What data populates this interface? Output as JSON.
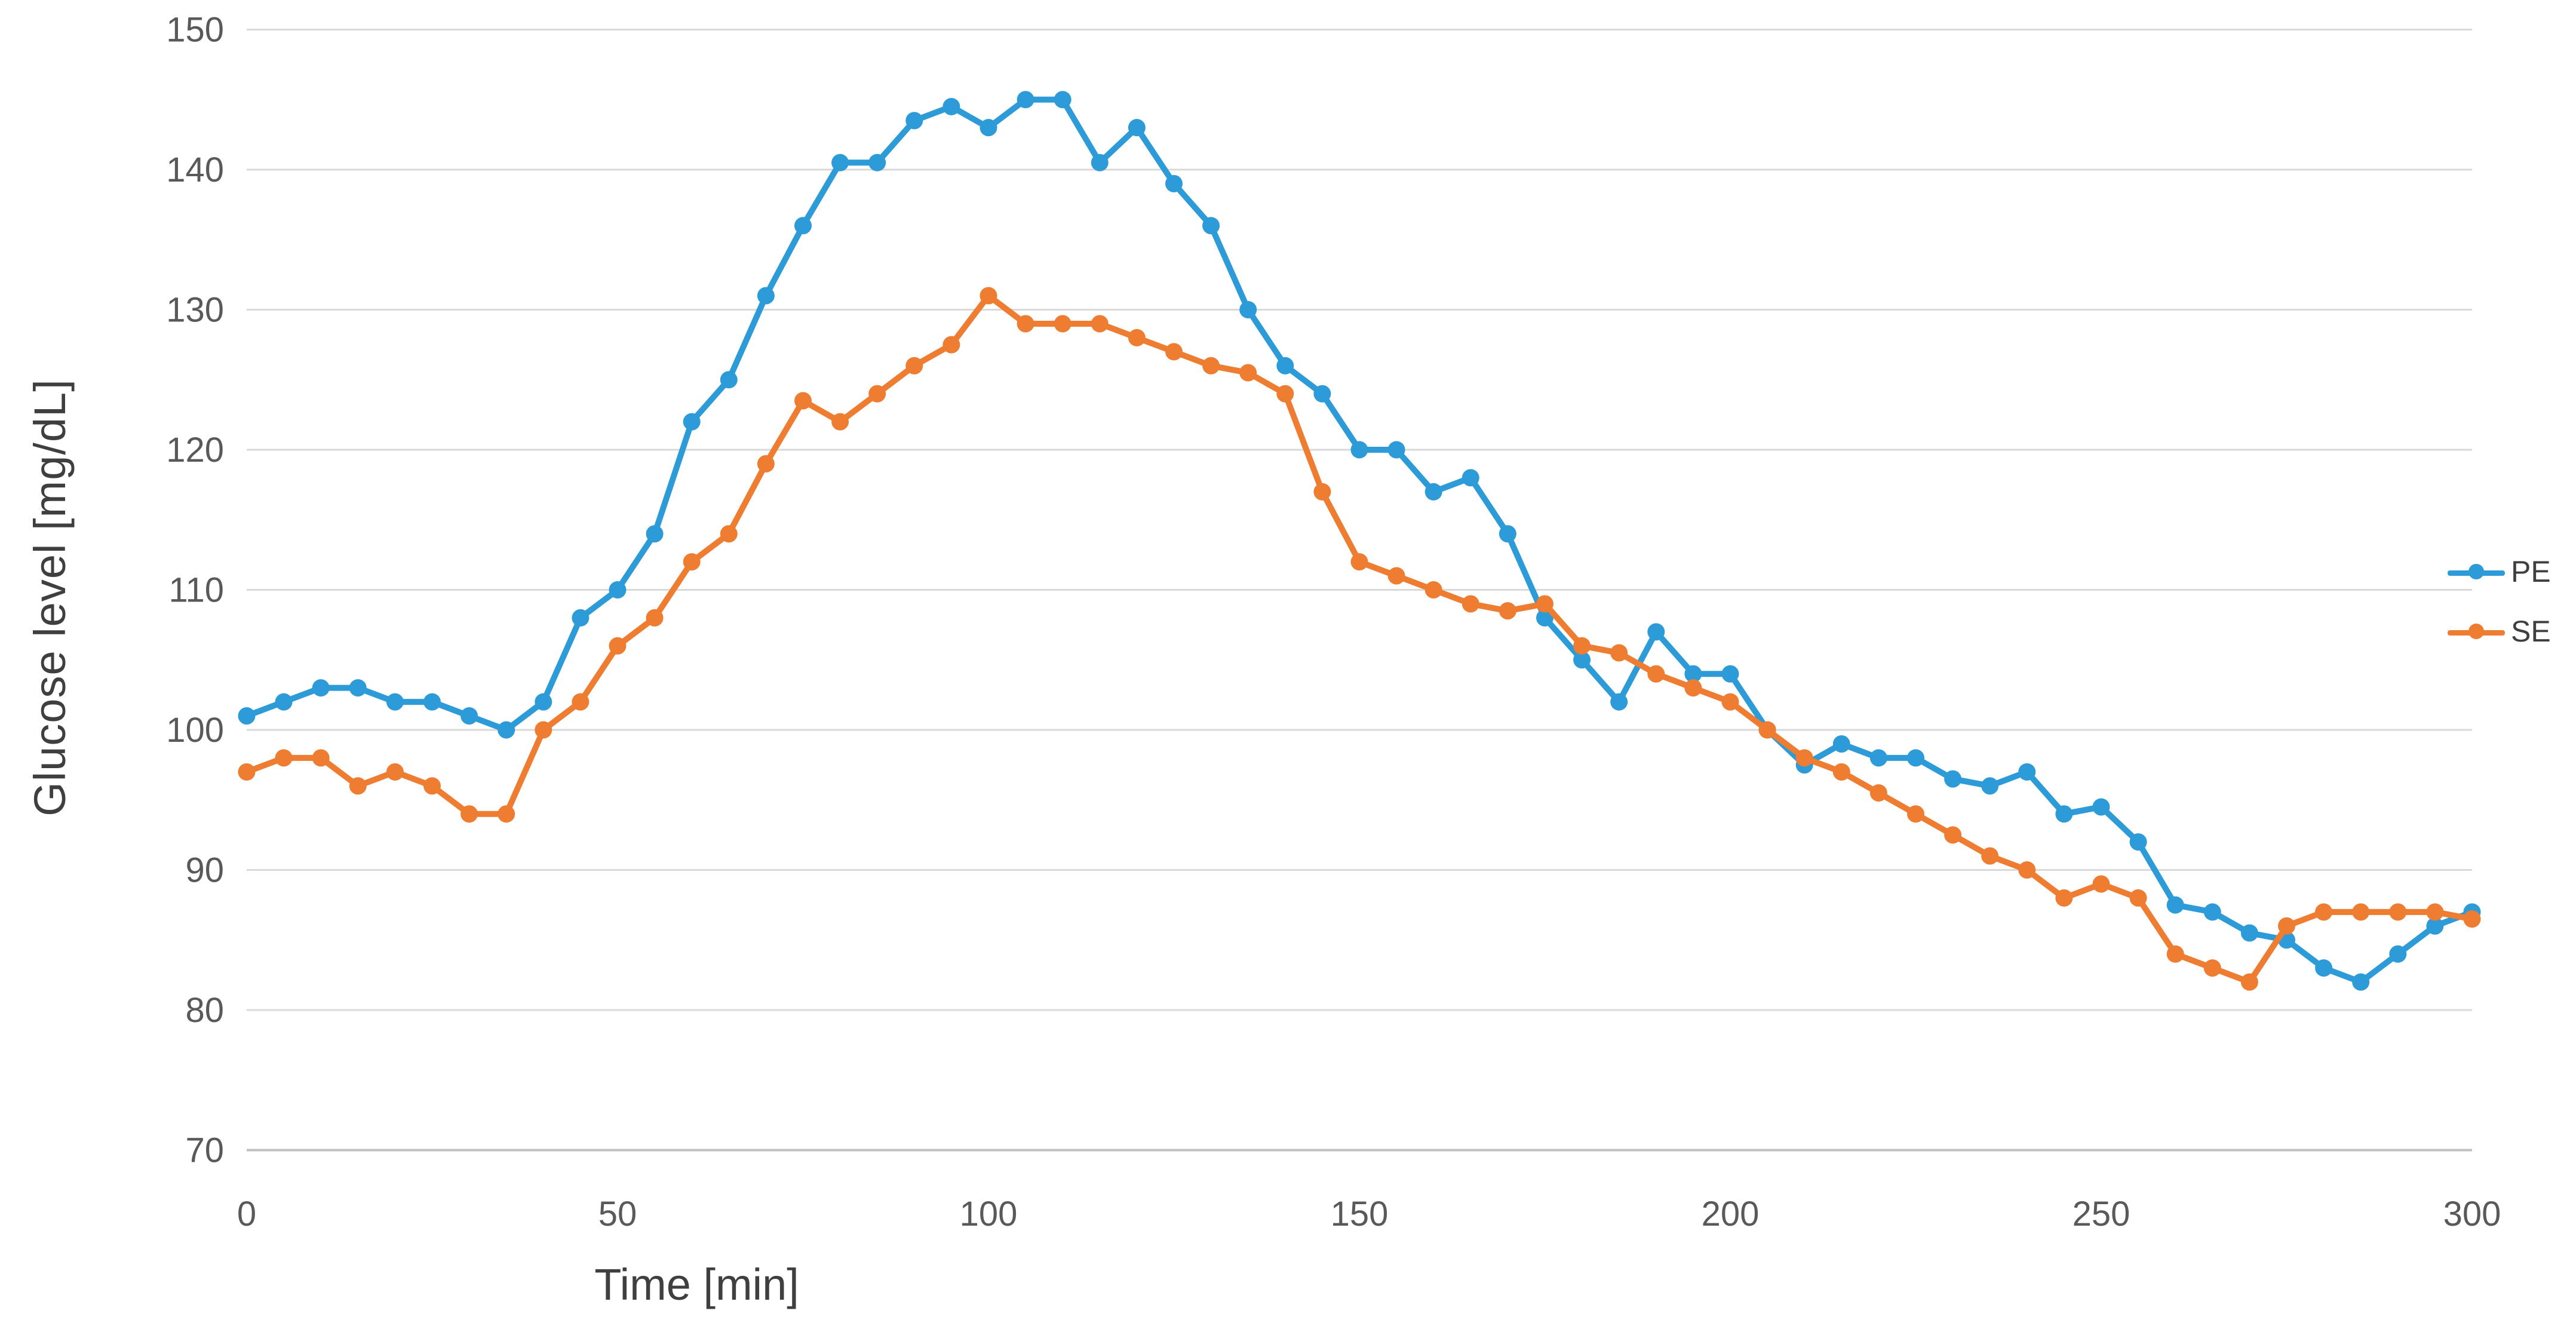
{
  "chart_data": {
    "type": "line",
    "title": "",
    "xlabel": "Time [min]",
    "ylabel": "Glucose level [mg/dL]",
    "x_start": 0,
    "x_step": 5,
    "xlim": [
      0,
      300
    ],
    "ylim": [
      70,
      150
    ],
    "x_ticks": [
      0,
      50,
      100,
      150,
      200,
      250,
      300
    ],
    "y_ticks": [
      150,
      140,
      130,
      120,
      110,
      100,
      90,
      80,
      70
    ],
    "grid": true,
    "legend_position": "right",
    "series": [
      {
        "name": "PE",
        "color": "#2d9bd7",
        "values": [
          101,
          102,
          103,
          103,
          102,
          102,
          101,
          100,
          102,
          108,
          110,
          114,
          122,
          125,
          131,
          136,
          140.5,
          140.5,
          143.5,
          144.5,
          143,
          145,
          145,
          140.5,
          143,
          139,
          136,
          130,
          126,
          124,
          120,
          120,
          117,
          118,
          114,
          108,
          105,
          102,
          107,
          104,
          104,
          100,
          97.5,
          99,
          98,
          98,
          96.5,
          96,
          97,
          94,
          94.5,
          92,
          87.5,
          87,
          85.5,
          85,
          83,
          82,
          84,
          86,
          87
        ]
      },
      {
        "name": "SE",
        "color": "#ee7d31",
        "values": [
          97,
          98,
          98,
          96,
          97,
          96,
          94,
          94,
          100,
          102,
          106,
          108,
          112,
          114,
          119,
          123.5,
          122,
          124,
          126,
          127.5,
          131,
          129,
          129,
          129,
          128,
          127,
          126,
          125.5,
          124,
          117,
          112,
          111,
          110,
          109,
          108.5,
          109,
          106,
          105.5,
          104,
          103,
          102,
          100,
          98,
          97,
          95.5,
          94,
          92.5,
          91,
          90,
          88,
          89,
          88,
          84,
          83,
          82,
          86,
          87,
          87,
          87,
          87,
          86.5
        ]
      }
    ],
    "colors": {
      "gridline": "#d9d9d9",
      "axis_line": "#bfbfbf",
      "tick_label": "#595959",
      "axis_title": "#3f3f3f"
    }
  },
  "legend": {
    "items": [
      {
        "label": "PE"
      },
      {
        "label": "SE"
      }
    ]
  },
  "axes": {
    "x_title": "Time [min]",
    "y_title": "Glucose level [mg/dL]"
  }
}
